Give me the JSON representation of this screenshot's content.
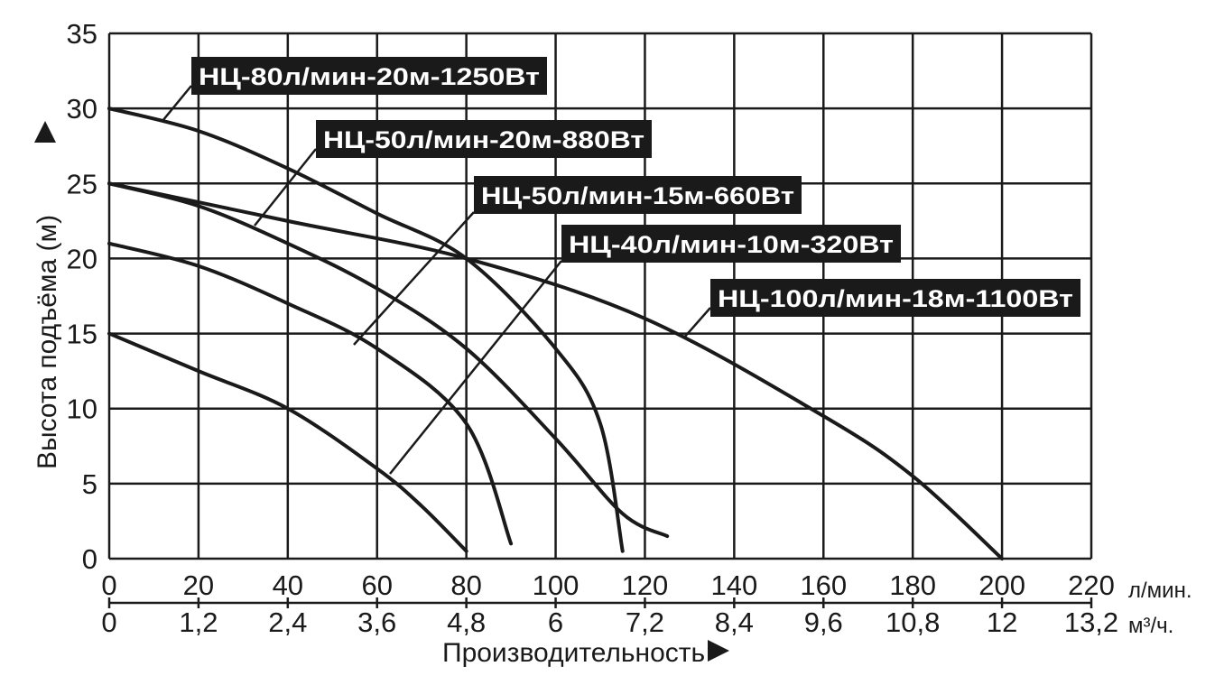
{
  "chart_data": {
    "type": "line",
    "ylabel": "Высота подъёма (м)",
    "xlabel": "Производительность",
    "ylim": [
      0,
      35
    ],
    "xlim": [
      0,
      220
    ],
    "grid": true,
    "y_ticks": [
      "0",
      "5",
      "10",
      "15",
      "20",
      "25",
      "30",
      "35"
    ],
    "x_ticks_primary": [
      "0",
      "20",
      "40",
      "60",
      "80",
      "100",
      "120",
      "140",
      "160",
      "180",
      "200",
      "220"
    ],
    "x_unit_primary": "л/мин.",
    "x_ticks_secondary": [
      "0",
      "1,2",
      "2,4",
      "3,6",
      "4,8",
      "6",
      "7,2",
      "8,4",
      "9,6",
      "10,8",
      "12",
      "13,2"
    ],
    "x_unit_secondary": "м³/ч.",
    "series": [
      {
        "name": "НЦ-80л/мин-20м-1250Вт",
        "x": [
          0,
          20,
          40,
          60,
          80,
          100,
          110,
          115
        ],
        "y": [
          30,
          28.5,
          26,
          23,
          20,
          14,
          9,
          0.5
        ]
      },
      {
        "name": "НЦ-50л/мин-20м-880Вт",
        "x": [
          0,
          20,
          40,
          60,
          80,
          100,
          115,
          125
        ],
        "y": [
          25,
          23.5,
          21,
          18,
          14,
          8,
          3,
          1.5
        ]
      },
      {
        "name": "НЦ-50л/мин-15м-660Вт",
        "x": [
          0,
          20,
          40,
          60,
          80,
          90
        ],
        "y": [
          21,
          19.5,
          17,
          14,
          9,
          1
        ]
      },
      {
        "name": "НЦ-40л/мин-10м-320Вт",
        "x": [
          0,
          20,
          40,
          60,
          70,
          80
        ],
        "y": [
          15,
          12.5,
          10,
          6,
          3.5,
          0.5
        ]
      },
      {
        "name": "НЦ-100л/мин-18м-1100Вт",
        "x": [
          0,
          40,
          80,
          120,
          160,
          180,
          200
        ],
        "y": [
          25,
          22.5,
          20,
          16,
          9.5,
          5.5,
          0
        ]
      }
    ],
    "labels": [
      {
        "text": "НЦ-80л/мин-20м-1250Вт",
        "color": "#1a1a1a"
      },
      {
        "text": "НЦ-50л/мин-20м-880Вт",
        "color": "#1a1a1a"
      },
      {
        "text": "НЦ-50л/мин-15м-660Вт",
        "color": "#1a1a1a"
      },
      {
        "text": "НЦ-40л/мин-10м-320Вт",
        "color": "#1a1a1a"
      },
      {
        "text": "НЦ-100л/мин-18м-1100Вт",
        "color": "#1a1a1a"
      }
    ]
  }
}
